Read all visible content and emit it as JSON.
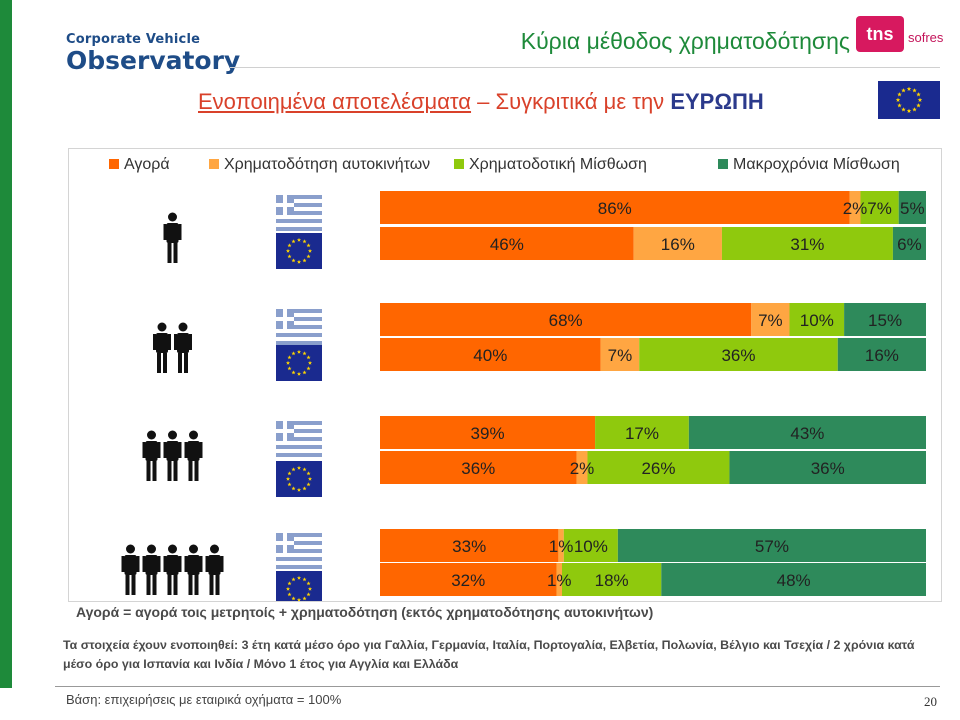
{
  "header": {
    "logo_line1": "Corporate Vehicle",
    "logo_line2": "Observatory",
    "title": "Κύρια μέθοδος χρηματοδότησης",
    "brand_tns": "tns",
    "brand_sofres": "sofres"
  },
  "subtitle": {
    "part1": "Ενοποιημένα αποτελέσματα",
    "part2": " – Συγκριτικά με την ",
    "part3": "ΕΥΡΩΠΗ"
  },
  "colors": {
    "purchase": "#ff6600",
    "car_financing": "#ffa642",
    "financial_leasing": "#8fc90d",
    "long_term_rental": "#2e8a5b",
    "greece_flag": "#8a9fcc",
    "eu_flag": "#1a2a8f",
    "eu_star": "#ffd500"
  },
  "chart_data": {
    "type": "bar",
    "orientation": "horizontal",
    "stacked": true,
    "xlim": [
      0,
      100
    ],
    "unit": "%",
    "legend_position": "top",
    "series": [
      {
        "name": "Αγορά"
      },
      {
        "name": "Χρηματοδότηση αυτοκινήτων"
      },
      {
        "name": "Χρηματοδοτική Μίσθωση"
      },
      {
        "name": "Μακροχρόνια Μίσθωση"
      }
    ],
    "rows": [
      {
        "group": 1,
        "people": 1,
        "region": "Greece",
        "values": [
          86,
          2,
          7,
          5
        ],
        "labels": [
          "86%",
          "2%",
          "7%",
          "5%"
        ]
      },
      {
        "group": 1,
        "people": 1,
        "region": "Europe",
        "values": [
          46,
          16,
          31,
          6
        ],
        "labels": [
          "46%",
          "16%",
          "31%",
          "6%"
        ]
      },
      {
        "group": 2,
        "people": 2,
        "region": "Greece",
        "values": [
          68,
          7,
          10,
          15
        ],
        "labels": [
          "68%",
          "7%",
          "10%",
          "15%"
        ]
      },
      {
        "group": 2,
        "people": 2,
        "region": "Europe",
        "values": [
          40,
          7,
          36,
          16
        ],
        "labels": [
          "40%",
          "7%",
          "36%",
          "16%"
        ]
      },
      {
        "group": 3,
        "people": 3,
        "region": "Greece",
        "values": [
          39,
          0,
          17,
          43
        ],
        "labels": [
          "39%",
          "",
          "17%",
          "43%"
        ]
      },
      {
        "group": 3,
        "people": 3,
        "region": "Europe",
        "values": [
          36,
          2,
          26,
          36
        ],
        "labels": [
          "36%",
          "2%",
          "26%",
          "36%"
        ]
      },
      {
        "group": 4,
        "people": 5,
        "region": "Greece",
        "values": [
          33,
          1,
          10,
          57
        ],
        "labels": [
          "33%",
          "1%",
          "10%",
          "57%"
        ]
      },
      {
        "group": 4,
        "people": 5,
        "region": "Europe",
        "values": [
          32,
          1,
          18,
          48
        ],
        "labels": [
          "32%",
          "1%",
          "18%",
          "48%"
        ]
      }
    ]
  },
  "footnotes": {
    "definition": "Αγορά = αγορά τοις μετρητοίς + χρηματοδότηση (εκτός χρηματοδότησης αυτοκινήτων)",
    "consolidation": "Τα στοιχεία έχουν ενοποιηθεί: 3 έτη κατά μέσο όρο για Γαλλία, Γερμανία, Ιταλία, Πορτογαλία, Ελβετία, Πολωνία, Βέλγιο και Τσεχία / 2 χρόνια κατά μέσο όρο για Ισπανία και Ινδία / Μόνο 1 έτος για Αγγλία και Ελλάδα",
    "base": "Βάση: επιχειρήσεις με εταιρικά οχήματα = 100%",
    "page_number": "20"
  }
}
